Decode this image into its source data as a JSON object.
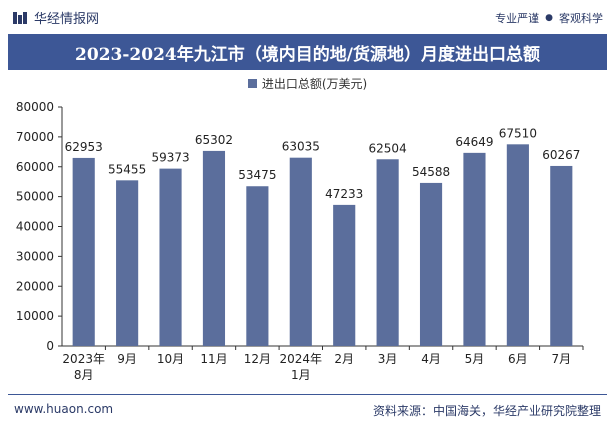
{
  "header": {
    "brand": "华经情报网",
    "tagline_left": "专业严谨",
    "tagline_right": "客观科学"
  },
  "title": "2023-2024年九江市（境内目的地/货源地）月度进出口总额",
  "footer": {
    "website": "www.huaon.com",
    "source": "资料来源：中国海关，华经产业研究院整理"
  },
  "colors": {
    "bar": "#5b6e9c",
    "title_bg": "#3d5796",
    "text": "#2b3a67"
  },
  "chart_data": {
    "type": "bar",
    "categories": [
      [
        "2023年",
        "8月"
      ],
      [
        "9月"
      ],
      [
        "10月"
      ],
      [
        "11月"
      ],
      [
        "12月"
      ],
      [
        "2024年",
        "1月"
      ],
      [
        "2月"
      ],
      [
        "3月"
      ],
      [
        "4月"
      ],
      [
        "5月"
      ],
      [
        "6月"
      ],
      [
        "7月"
      ]
    ],
    "series": [
      {
        "name": "进出口总额(万美元)",
        "values": [
          62953,
          55455,
          59373,
          65302,
          53475,
          63035,
          47233,
          62504,
          54588,
          64649,
          67510,
          60267
        ]
      }
    ],
    "ylim": [
      0,
      80000
    ],
    "yticks": [
      0,
      10000,
      20000,
      30000,
      40000,
      50000,
      60000,
      70000,
      80000
    ],
    "legend_position": "top-center",
    "grid": false
  }
}
